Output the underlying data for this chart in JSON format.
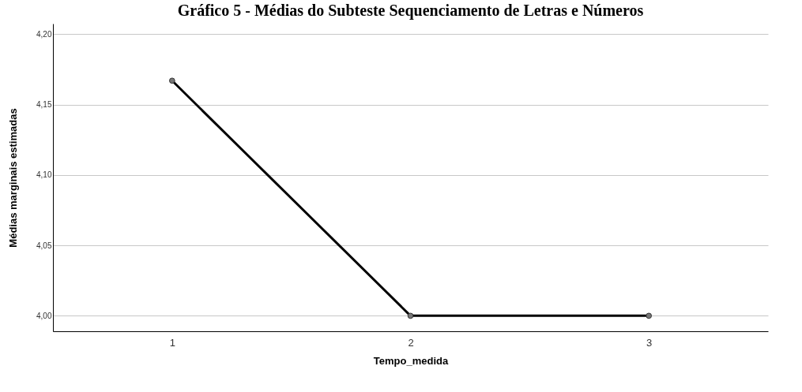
{
  "chart_data": {
    "type": "line",
    "title": "Gráfico 5 - Médias do Subteste Sequenciamento de Letras e Números",
    "xlabel": "Tempo_medida",
    "ylabel": "Médias marginais estimadas",
    "categories": [
      "1",
      "2",
      "3"
    ],
    "series": [
      {
        "color": "#000000",
        "values": [
          4.167,
          4.0,
          4.0
        ]
      }
    ],
    "ylim": [
      3.989,
      4.2075
    ],
    "yticks": [
      {
        "value": 4.0,
        "label": "4,00"
      },
      {
        "value": 4.05,
        "label": "4,05"
      },
      {
        "value": 4.1,
        "label": "4,10"
      },
      {
        "value": 4.15,
        "label": "4,15"
      },
      {
        "value": 4.2,
        "label": "4,20"
      }
    ],
    "grid": "y",
    "marker": "circle",
    "line_style": "solid",
    "legend": false
  }
}
